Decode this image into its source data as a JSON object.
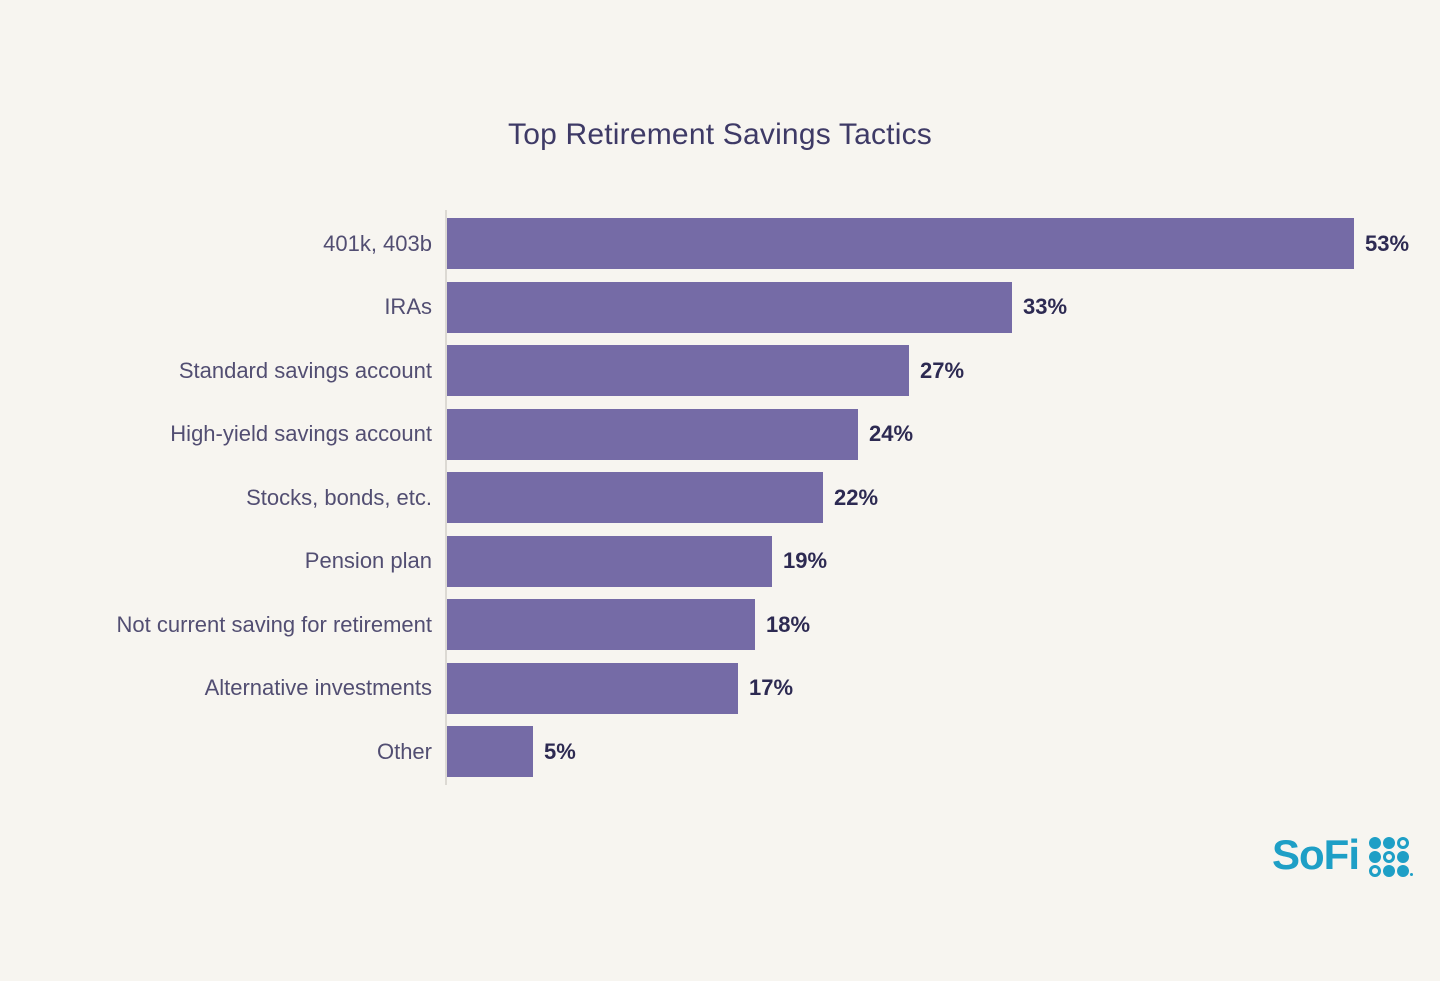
{
  "page": {
    "background_color": "#f7f5f0"
  },
  "chart_data": {
    "type": "bar",
    "orientation": "horizontal",
    "title": "Top Retirement Savings Tactics",
    "categories": [
      "401k, 403b",
      "IRAs",
      "Standard savings account",
      "High-yield savings account",
      "Stocks, bonds, etc.",
      "Pension plan",
      "Not current saving for retirement",
      "Alternative investments",
      "Other"
    ],
    "values": [
      53,
      33,
      27,
      24,
      22,
      19,
      18,
      17,
      5
    ],
    "value_labels": [
      "53%",
      "33%",
      "27%",
      "24%",
      "22%",
      "19%",
      "18%",
      "17%",
      "5%"
    ],
    "xlabel": "",
    "ylabel": "",
    "xlim": [
      0,
      53
    ],
    "grid": false,
    "legend": false,
    "bar_color": "#756ba6",
    "category_label_color": "#524e72",
    "value_label_color": "#2d2a52",
    "title_color": "#3e3a66",
    "axis_line_color": "#dcd9d3"
  },
  "branding": {
    "logo_text": "SoFi",
    "logo_color": "#1e9fc6",
    "logo_mark_icon": "sofi-dot-grid-icon",
    "logo_mark_pattern": [
      "filled",
      "filled",
      "outline",
      "filled",
      "outline",
      "filled",
      "outline",
      "filled",
      "filled"
    ]
  }
}
